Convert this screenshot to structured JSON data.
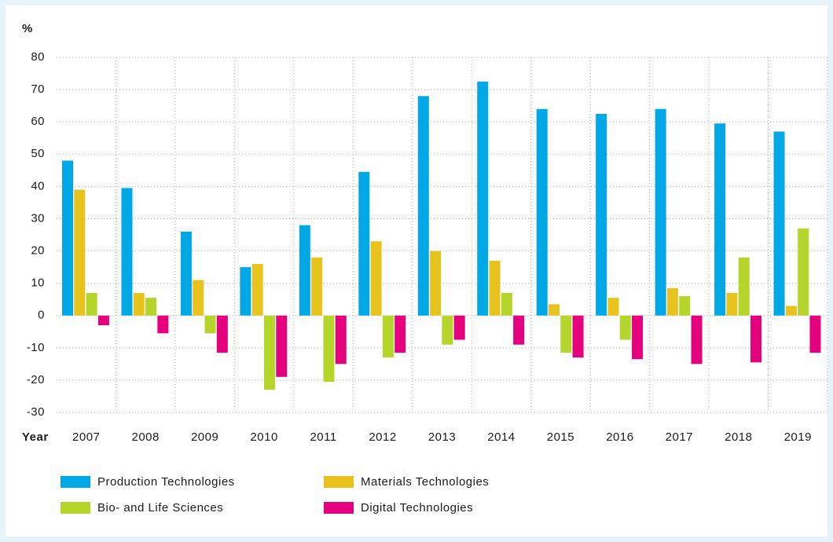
{
  "chart_data": {
    "type": "bar",
    "y_label": "%",
    "x_label": "Year",
    "categories": [
      "2007",
      "2008",
      "2009",
      "2010",
      "2011",
      "2012",
      "2013",
      "2014",
      "2015",
      "2016",
      "2017",
      "2018",
      "2019"
    ],
    "series": [
      {
        "name": "Production Technologies",
        "color": "#00a8e6",
        "values": [
          48,
          39.5,
          26,
          15,
          28,
          44.5,
          68,
          72.5,
          64,
          62.5,
          64,
          59.5,
          57
        ]
      },
      {
        "name": "Materials Technologies",
        "color": "#e8c31e",
        "values": [
          39,
          7,
          11,
          16,
          18,
          23,
          20,
          17,
          3.5,
          5.5,
          8.5,
          7,
          3
        ]
      },
      {
        "name": "Bio- and Life Sciences",
        "color": "#b5d52a",
        "values": [
          7,
          5.5,
          -5.5,
          -23,
          -20.5,
          -13,
          -9,
          7,
          -11.5,
          -7.5,
          6,
          18,
          27
        ]
      },
      {
        "name": "Digital Technologies",
        "color": "#e5007d",
        "values": [
          -3,
          -5.5,
          -11.5,
          -19,
          -15,
          -11.5,
          -7.5,
          -9,
          -13,
          -13.5,
          -15,
          -14.5,
          -11.5
        ]
      }
    ],
    "ylim": [
      -30,
      80
    ],
    "yticks": [
      -30,
      -20,
      -10,
      0,
      10,
      20,
      30,
      40,
      50,
      60,
      70,
      80
    ],
    "grid": true
  }
}
